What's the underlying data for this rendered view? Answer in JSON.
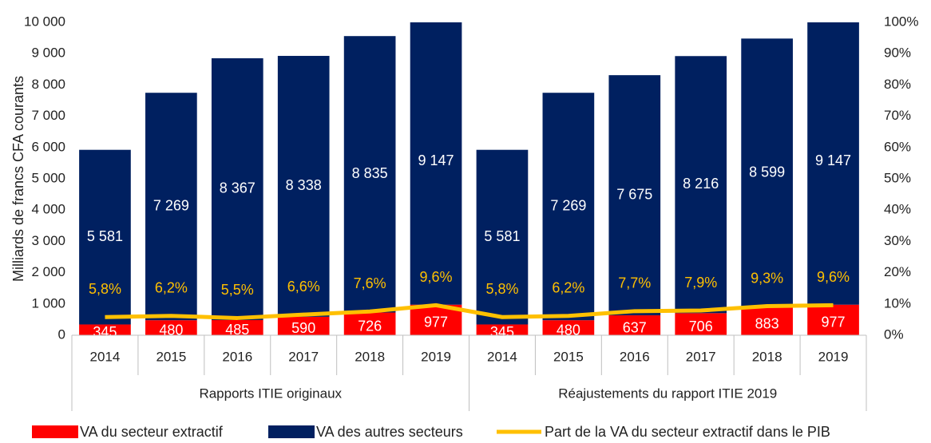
{
  "chart_data": {
    "type": "stacked_bar_line",
    "y_label": "Milliards de francs CFA courants",
    "categories": [
      "2014",
      "2015",
      "2016",
      "2017",
      "2018",
      "2019",
      "2014",
      "2015",
      "2016",
      "2017",
      "2018",
      "2019"
    ],
    "category_groups": [
      "Rapports ITIE originaux",
      "Réajustements du rapport ITIE 2019"
    ],
    "ylim": [
      0,
      10000
    ],
    "yticks": [
      0,
      {
        "value": 1000,
        "label": "1 000"
      },
      {
        "value": 2000,
        "label": "2 000"
      },
      {
        "value": 3000,
        "label": "3 000"
      },
      {
        "value": 4000,
        "label": "4 000"
      },
      {
        "value": 5000,
        "label": "5 000"
      },
      {
        "value": 6000,
        "label": "6 000"
      },
      {
        "value": 7000,
        "label": "7 000"
      },
      {
        "value": 8000,
        "label": "8 000"
      },
      {
        "value": 9000,
        "label": "9 000"
      },
      {
        "value": 10000,
        "label": "10 000"
      }
    ],
    "y2lim": [
      0,
      100
    ],
    "y2ticks": [
      {
        "value": 0,
        "label": "0%"
      },
      {
        "value": 10,
        "label": "10%"
      },
      {
        "value": 20,
        "label": "20%"
      },
      {
        "value": 30,
        "label": "30%"
      },
      {
        "value": 40,
        "label": "40%"
      },
      {
        "value": 50,
        "label": "50%"
      },
      {
        "value": 60,
        "label": "60%"
      },
      {
        "value": 70,
        "label": "70%"
      },
      {
        "value": 80,
        "label": "80%"
      },
      {
        "value": 90,
        "label": "90%"
      },
      {
        "value": 100,
        "label": "100%"
      }
    ],
    "series": [
      {
        "name": "VA du secteur extractif",
        "color": "#ff0000",
        "kind": "bar",
        "values": [
          345,
          480,
          485,
          590,
          726,
          977,
          345,
          480,
          637,
          706,
          883,
          977
        ]
      },
      {
        "name": "VA des autres secteurs",
        "color": "#002060",
        "kind": "bar",
        "values": [
          5581,
          7269,
          8367,
          8338,
          8835,
          9147,
          5581,
          7269,
          7675,
          8216,
          8599,
          9147
        ],
        "value_labels": [
          "5 581",
          "7 269",
          "8 367",
          "8 338",
          "8 835",
          "9 147",
          "5 581",
          "7 269",
          "7 675",
          "8 216",
          "8 599",
          "9 147"
        ]
      },
      {
        "name": "Part de la VA du secteur extractif dans le PIB",
        "color": "#ffc000",
        "kind": "line",
        "axis": "y2",
        "values": [
          5.8,
          6.2,
          5.5,
          6.6,
          7.6,
          9.6,
          5.8,
          6.2,
          7.7,
          7.9,
          9.3,
          9.6
        ],
        "value_labels": [
          "5,8%",
          "6,2%",
          "5,5%",
          "6,6%",
          "7,6%",
          "9,6%",
          "5,8%",
          "6,2%",
          "7,7%",
          "7,9%",
          "9,3%",
          "9,6%"
        ]
      }
    ]
  }
}
